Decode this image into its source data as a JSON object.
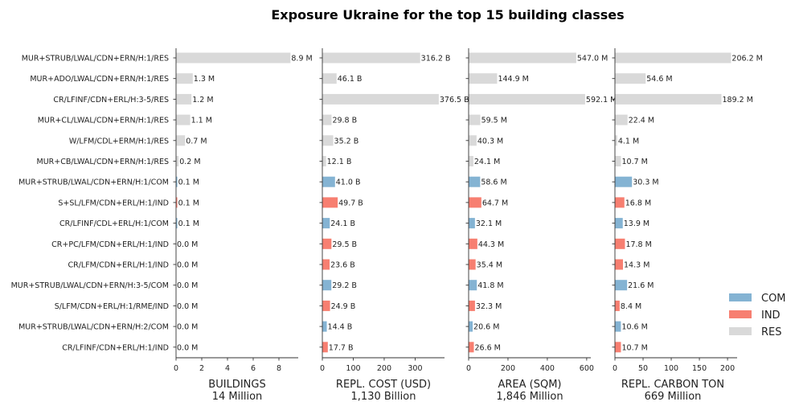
{
  "chart_data": {
    "type": "bar",
    "title": "Exposure Ukraine for the top 15 building classes",
    "categories": [
      "MUR+STRUB/LWAL/CDN+ERN/H:1/RES",
      "MUR+ADO/LWAL/CDN+ERN/H:1/RES",
      "CR/LFINF/CDN+ERL/H:3-5/RES",
      "MUR+CL/LWAL/CDN+ERN/H:1/RES",
      "W/LFM/CDL+ERM/H:1/RES",
      "MUR+CB/LWAL/CDN+ERN/H:1/RES",
      "MUR+STRUB/LWAL/CDN+ERN/H:1/COM",
      "S+SL/LFM/CDN+ERL/H:1/IND",
      "CR/LFINF/CDL+ERL/H:1/COM",
      "CR+PC/LFM/CDN+ERL/H:1/IND",
      "CR/LFM/CDN+ERL/H:1/IND",
      "MUR+STRUB/LWAL/CDN+ERN/H:3-5/COM",
      "S/LFM/CDN+ERL/H:1/RME/IND",
      "MUR+STRUB/LWAL/CDN+ERN/H:2/COM",
      "CR/LFINF/CDN+ERL/H:1/IND"
    ],
    "occupancy": [
      "RES",
      "RES",
      "RES",
      "RES",
      "RES",
      "RES",
      "COM",
      "IND",
      "COM",
      "IND",
      "IND",
      "COM",
      "IND",
      "COM",
      "IND"
    ],
    "colors": {
      "COM": "#84b3d3",
      "IND": "#f77f71",
      "RES": "#d9d9d9"
    },
    "legend": {
      "position": "right",
      "entries": [
        "COM",
        "IND",
        "RES"
      ]
    },
    "panels": [
      {
        "xlabel": "BUILDINGS",
        "total": "14 Million",
        "xlim": [
          0,
          9.5
        ],
        "ticks": [
          0,
          2,
          4,
          6,
          8
        ],
        "tick_labels": [
          "0",
          "2",
          "4",
          "6",
          "8"
        ],
        "values": [
          8.9,
          1.3,
          1.2,
          1.1,
          0.7,
          0.2,
          0.1,
          0.1,
          0.1,
          0.0,
          0.0,
          0.0,
          0.0,
          0.0,
          0.0
        ],
        "labels": [
          "8.9 M",
          "1.3 M",
          "1.2 M",
          "1.1 M",
          "0.7 M",
          "0.2 M",
          "0.1 M",
          "0.1 M",
          "0.1 M",
          "0.0 M",
          "0.0 M",
          "0.0 M",
          "0.0 M",
          "0.0 M",
          "0.0 M"
        ]
      },
      {
        "xlabel": "REPL. COST (USD)",
        "total": "1,130 Billion",
        "xlim": [
          0,
          395
        ],
        "ticks": [
          0,
          100,
          200,
          300
        ],
        "tick_labels": [
          "0",
          "100",
          "200",
          "300"
        ],
        "values": [
          316.2,
          46.1,
          376.5,
          29.8,
          35.2,
          12.1,
          41.0,
          49.7,
          24.1,
          29.5,
          23.6,
          29.2,
          24.9,
          14.4,
          17.7
        ],
        "labels": [
          "316.2 B",
          "46.1 B",
          "376.5 B",
          "29.8 B",
          "35.2 B",
          "12.1 B",
          "41.0 B",
          "49.7 B",
          "24.1 B",
          "29.5 B",
          "23.6 B",
          "29.2 B",
          "24.9 B",
          "14.4 B",
          "17.7 B"
        ]
      },
      {
        "xlabel": "AREA (SQM)",
        "total": "1,846 Million",
        "xlim": [
          0,
          621
        ],
        "ticks": [
          0,
          200,
          400,
          600
        ],
        "tick_labels": [
          "0",
          "200",
          "400",
          "600"
        ],
        "values": [
          547.0,
          144.9,
          592.1,
          59.5,
          40.3,
          24.1,
          58.6,
          64.7,
          32.1,
          44.3,
          35.4,
          41.8,
          32.3,
          20.6,
          26.6
        ],
        "labels": [
          "547.0 M",
          "144.9 M",
          "592.1 M",
          "59.5 M",
          "40.3 M",
          "24.1 M",
          "58.6 M",
          "64.7 M",
          "32.1 M",
          "44.3 M",
          "35.4 M",
          "41.8 M",
          "32.3 M",
          "20.6 M",
          "26.6 M"
        ]
      },
      {
        "xlabel": "REPL. CARBON TON",
        "total": "669 Million",
        "xlim": [
          0,
          217
        ],
        "ticks": [
          0,
          50,
          100,
          150,
          200
        ],
        "tick_labels": [
          "0",
          "50",
          "100",
          "150",
          "200"
        ],
        "values": [
          206.2,
          54.6,
          189.2,
          22.4,
          4.1,
          10.7,
          30.3,
          16.8,
          13.9,
          17.8,
          14.3,
          21.6,
          8.4,
          10.6,
          10.7
        ],
        "labels": [
          "206.2 M",
          "54.6 M",
          "189.2 M",
          "22.4 M",
          "4.1 M",
          "10.7 M",
          "30.3 M",
          "16.8 M",
          "13.9 M",
          "17.8 M",
          "14.3 M",
          "21.6 M",
          "8.4 M",
          "10.6 M",
          "10.7 M"
        ]
      }
    ]
  }
}
